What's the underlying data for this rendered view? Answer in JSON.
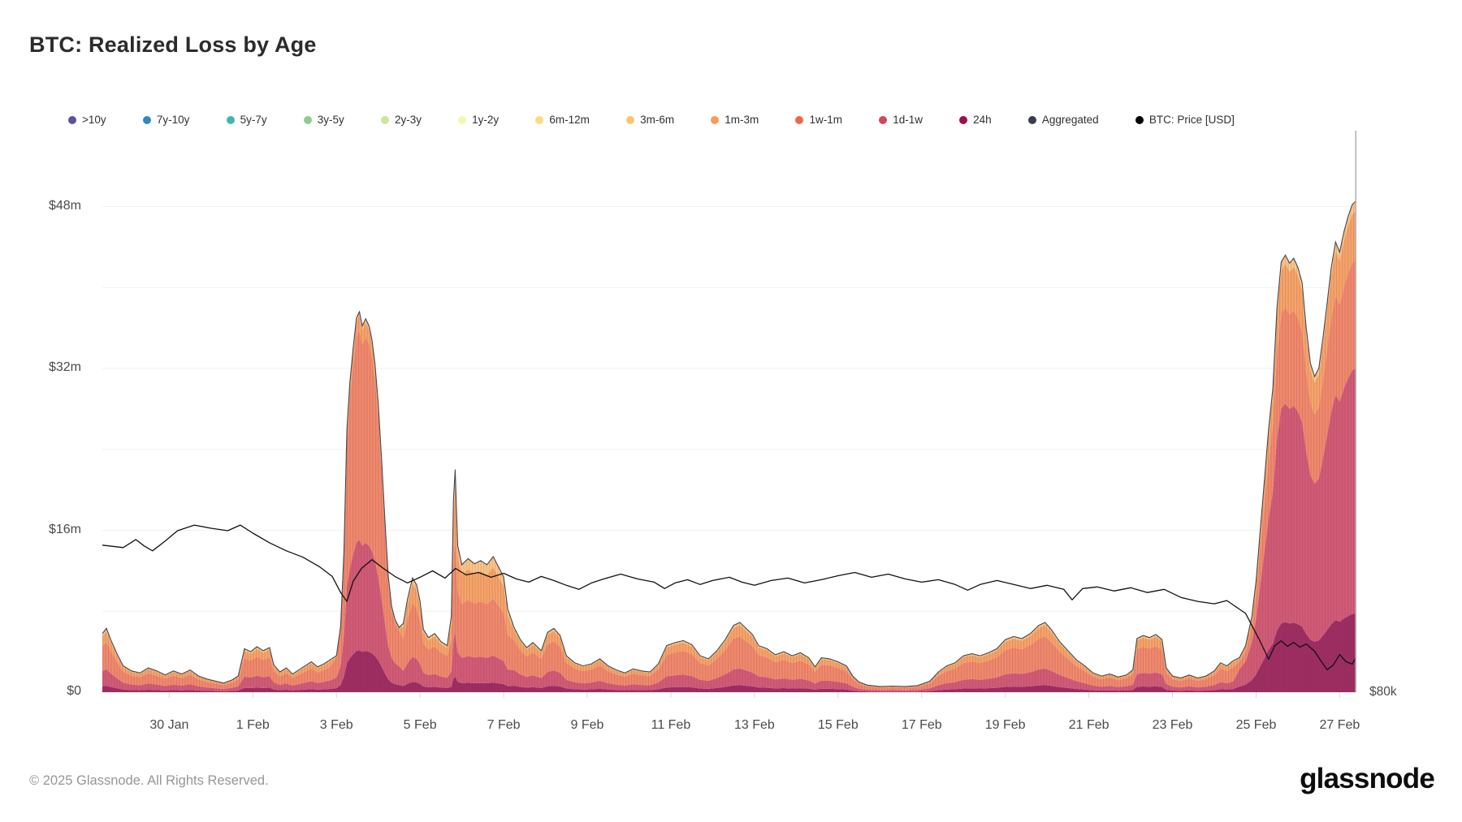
{
  "header": {
    "title": "BTC: Realized Loss by Age"
  },
  "footer": {
    "copyright": "© 2025 Glassnode. All Rights Reserved.",
    "brand": "glassnode"
  },
  "legend": {
    "items": [
      {
        "id": "gt10y",
        "label": ">10y",
        "color": "#5e4fa2"
      },
      {
        "id": "7y-10y",
        "label": "7y-10y",
        "color": "#3288bd"
      },
      {
        "id": "5y-7y",
        "label": "5y-7y",
        "color": "#45b5aa"
      },
      {
        "id": "3y-5y",
        "label": "3y-5y",
        "color": "#8ecb93"
      },
      {
        "id": "2y-3y",
        "label": "2y-3y",
        "color": "#cbe79a"
      },
      {
        "id": "1y-2y",
        "label": "1y-2y",
        "color": "#f3f9ad"
      },
      {
        "id": "6m-12m",
        "label": "6m-12m",
        "color": "#fcda7e"
      },
      {
        "id": "3m-6m",
        "label": "3m-6m",
        "color": "#fbc46d"
      },
      {
        "id": "1m-3m",
        "label": "1m-3m",
        "color": "#f89b57"
      },
      {
        "id": "1w-1m",
        "label": "1w-1m",
        "color": "#f06744"
      },
      {
        "id": "1d-1w",
        "label": "1d-1w",
        "color": "#d4465a"
      },
      {
        "id": "24h",
        "label": "24h",
        "color": "#9e0f4d"
      },
      {
        "id": "aggregated",
        "label": "Aggregated",
        "color": "#3a3d4d"
      },
      {
        "id": "btc-price",
        "label": "BTC: Price [USD]",
        "color": "#000000"
      }
    ]
  },
  "chart_data": {
    "type": "area",
    "title": "BTC: Realized Loss by Age",
    "unit": "USD millions realized loss per hour",
    "x_unit_days_span": 30,
    "x_origin_note": "d = fractional days, d=0 at left edge (~28 Jan), d=30 at right edge (~27 Feb)",
    "ylim": [
      0,
      55.5
    ],
    "y_grid_step": 8,
    "y_ticks": [
      {
        "v": 0,
        "label": "$0"
      },
      {
        "v": 16,
        "label": "$16m"
      },
      {
        "v": 32,
        "label": "$32m"
      },
      {
        "v": 48,
        "label": "$48m"
      }
    ],
    "x_ticks": [
      {
        "d": 1.6,
        "label": "30 Jan"
      },
      {
        "d": 3.6,
        "label": "1 Feb"
      },
      {
        "d": 5.6,
        "label": "3 Feb"
      },
      {
        "d": 7.6,
        "label": "5 Feb"
      },
      {
        "d": 9.6,
        "label": "7 Feb"
      },
      {
        "d": 11.6,
        "label": "9 Feb"
      },
      {
        "d": 13.6,
        "label": "11 Feb"
      },
      {
        "d": 15.6,
        "label": "13 Feb"
      },
      {
        "d": 17.6,
        "label": "15 Feb"
      },
      {
        "d": 19.6,
        "label": "17 Feb"
      },
      {
        "d": 21.6,
        "label": "19 Feb"
      },
      {
        "d": 23.6,
        "label": "21 Feb"
      },
      {
        "d": 25.6,
        "label": "23 Feb"
      },
      {
        "d": 27.6,
        "label": "25 Feb"
      },
      {
        "d": 29.6,
        "label": "27 Feb"
      }
    ],
    "layers": [
      {
        "id": "24h",
        "fill": "#9d2e63"
      },
      {
        "id": "1d-1w",
        "fill": "#d05c77"
      },
      {
        "id": "1w-1m",
        "fill": "#ef8a6d"
      },
      {
        "id": "1m-3m",
        "fill": "#f5a569"
      },
      {
        "id": "3m-6m+",
        "fill": "#f9c788"
      }
    ],
    "composition": [
      {
        "from": 0.0,
        "to": 5.5,
        "f": [
          0.1,
          0.26,
          0.42,
          0.17,
          0.05
        ]
      },
      {
        "from": 5.5,
        "to": 7.15,
        "f": [
          0.11,
          0.29,
          0.55,
          0.04,
          0.01
        ]
      },
      {
        "from": 7.15,
        "to": 8.3,
        "f": [
          0.09,
          0.22,
          0.47,
          0.17,
          0.05
        ]
      },
      {
        "from": 8.3,
        "to": 9.75,
        "f": [
          0.07,
          0.2,
          0.42,
          0.23,
          0.08
        ]
      },
      {
        "from": 9.75,
        "to": 27.1,
        "f": [
          0.1,
          0.24,
          0.46,
          0.16,
          0.04
        ]
      },
      {
        "from": 27.1,
        "to": 30.1,
        "f": [
          0.16,
          0.5,
          0.22,
          0.1,
          0.02
        ]
      }
    ],
    "total_loss_musd": [
      [
        0,
        5.8
      ],
      [
        0.1,
        6.3
      ],
      [
        0.2,
        5.2
      ],
      [
        0.35,
        3.8
      ],
      [
        0.5,
        2.6
      ],
      [
        0.7,
        2.1
      ],
      [
        0.9,
        1.9
      ],
      [
        1.1,
        2.4
      ],
      [
        1.3,
        2.1
      ],
      [
        1.5,
        1.7
      ],
      [
        1.7,
        2.1
      ],
      [
        1.9,
        1.8
      ],
      [
        2.1,
        2.2
      ],
      [
        2.3,
        1.6
      ],
      [
        2.5,
        1.3
      ],
      [
        2.7,
        1.1
      ],
      [
        2.9,
        0.9
      ],
      [
        3.1,
        1.2
      ],
      [
        3.25,
        1.6
      ],
      [
        3.4,
        4.3
      ],
      [
        3.55,
        4.0
      ],
      [
        3.7,
        4.5
      ],
      [
        3.85,
        4.1
      ],
      [
        4.0,
        4.4
      ],
      [
        4.1,
        2.7
      ],
      [
        4.25,
        2.0
      ],
      [
        4.4,
        2.4
      ],
      [
        4.55,
        1.8
      ],
      [
        4.7,
        2.2
      ],
      [
        4.85,
        2.6
      ],
      [
        5.0,
        3.0
      ],
      [
        5.15,
        2.5
      ],
      [
        5.3,
        2.8
      ],
      [
        5.45,
        3.2
      ],
      [
        5.6,
        3.6
      ],
      [
        5.7,
        6.5
      ],
      [
        5.78,
        14
      ],
      [
        5.85,
        26
      ],
      [
        5.92,
        30.5
      ],
      [
        6.0,
        34
      ],
      [
        6.08,
        37
      ],
      [
        6.15,
        37.6
      ],
      [
        6.22,
        36.2
      ],
      [
        6.3,
        36.9
      ],
      [
        6.38,
        36.2
      ],
      [
        6.45,
        34.8
      ],
      [
        6.52,
        32.5
      ],
      [
        6.6,
        28.5
      ],
      [
        6.68,
        23
      ],
      [
        6.76,
        17
      ],
      [
        6.84,
        11.5
      ],
      [
        6.92,
        8.5
      ],
      [
        7.0,
        7.2
      ],
      [
        7.1,
        6.4
      ],
      [
        7.2,
        6.8
      ],
      [
        7.3,
        9.2
      ],
      [
        7.42,
        11.3
      ],
      [
        7.52,
        10.6
      ],
      [
        7.6,
        9.0
      ],
      [
        7.68,
        6.2
      ],
      [
        7.8,
        5.4
      ],
      [
        7.95,
        5.8
      ],
      [
        8.1,
        5.0
      ],
      [
        8.25,
        4.6
      ],
      [
        8.35,
        7.5
      ],
      [
        8.4,
        19
      ],
      [
        8.44,
        22
      ],
      [
        8.5,
        14.5
      ],
      [
        8.6,
        12.6
      ],
      [
        8.75,
        13.2
      ],
      [
        8.9,
        12.7
      ],
      [
        9.05,
        13.0
      ],
      [
        9.2,
        12.6
      ],
      [
        9.35,
        13.4
      ],
      [
        9.5,
        12.2
      ],
      [
        9.6,
        11.4
      ],
      [
        9.7,
        8.2
      ],
      [
        9.85,
        6.4
      ],
      [
        10.0,
        5.2
      ],
      [
        10.15,
        4.4
      ],
      [
        10.3,
        4.9
      ],
      [
        10.5,
        4.1
      ],
      [
        10.65,
        5.9
      ],
      [
        10.8,
        6.3
      ],
      [
        10.95,
        5.6
      ],
      [
        11.1,
        3.6
      ],
      [
        11.3,
        2.9
      ],
      [
        11.5,
        2.6
      ],
      [
        11.7,
        2.8
      ],
      [
        11.9,
        3.3
      ],
      [
        12.1,
        2.6
      ],
      [
        12.3,
        2.2
      ],
      [
        12.5,
        1.9
      ],
      [
        12.7,
        2.3
      ],
      [
        12.9,
        2.1
      ],
      [
        13.1,
        2.0
      ],
      [
        13.3,
        2.8
      ],
      [
        13.5,
        4.6
      ],
      [
        13.7,
        4.9
      ],
      [
        13.9,
        5.1
      ],
      [
        14.1,
        4.7
      ],
      [
        14.3,
        3.6
      ],
      [
        14.5,
        3.3
      ],
      [
        14.7,
        4.1
      ],
      [
        14.9,
        5.2
      ],
      [
        15.1,
        6.6
      ],
      [
        15.25,
        6.9
      ],
      [
        15.4,
        6.3
      ],
      [
        15.55,
        5.7
      ],
      [
        15.7,
        4.6
      ],
      [
        15.9,
        4.3
      ],
      [
        16.1,
        3.7
      ],
      [
        16.3,
        4.0
      ],
      [
        16.5,
        3.6
      ],
      [
        16.7,
        3.9
      ],
      [
        16.9,
        3.4
      ],
      [
        17.05,
        2.5
      ],
      [
        17.2,
        3.4
      ],
      [
        17.4,
        3.3
      ],
      [
        17.6,
        3.0
      ],
      [
        17.8,
        2.6
      ],
      [
        17.95,
        1.6
      ],
      [
        18.1,
        1.0
      ],
      [
        18.3,
        0.7
      ],
      [
        18.6,
        0.55
      ],
      [
        18.9,
        0.6
      ],
      [
        19.2,
        0.55
      ],
      [
        19.5,
        0.65
      ],
      [
        19.8,
        1.1
      ],
      [
        20.0,
        2.0
      ],
      [
        20.2,
        2.6
      ],
      [
        20.4,
        2.9
      ],
      [
        20.6,
        3.6
      ],
      [
        20.8,
        3.8
      ],
      [
        21.0,
        3.6
      ],
      [
        21.2,
        3.9
      ],
      [
        21.4,
        4.3
      ],
      [
        21.6,
        5.2
      ],
      [
        21.8,
        5.5
      ],
      [
        22.0,
        5.3
      ],
      [
        22.2,
        5.8
      ],
      [
        22.4,
        6.6
      ],
      [
        22.55,
        6.9
      ],
      [
        22.7,
        6.2
      ],
      [
        22.9,
        5.0
      ],
      [
        23.1,
        4.1
      ],
      [
        23.3,
        3.2
      ],
      [
        23.5,
        2.6
      ],
      [
        23.7,
        1.9
      ],
      [
        23.9,
        1.6
      ],
      [
        24.1,
        1.8
      ],
      [
        24.3,
        1.5
      ],
      [
        24.5,
        1.7
      ],
      [
        24.65,
        2.2
      ],
      [
        24.75,
        5.3
      ],
      [
        24.9,
        5.6
      ],
      [
        25.05,
        5.4
      ],
      [
        25.2,
        5.7
      ],
      [
        25.35,
        5.2
      ],
      [
        25.45,
        2.4
      ],
      [
        25.6,
        1.6
      ],
      [
        25.8,
        1.4
      ],
      [
        26.0,
        1.7
      ],
      [
        26.2,
        1.4
      ],
      [
        26.4,
        1.6
      ],
      [
        26.6,
        2.1
      ],
      [
        26.75,
        2.9
      ],
      [
        26.9,
        2.6
      ],
      [
        27.05,
        3.1
      ],
      [
        27.2,
        3.4
      ],
      [
        27.35,
        4.6
      ],
      [
        27.5,
        7.5
      ],
      [
        27.6,
        11
      ],
      [
        27.7,
        16
      ],
      [
        27.8,
        21
      ],
      [
        27.9,
        26
      ],
      [
        28.0,
        30
      ],
      [
        28.1,
        38
      ],
      [
        28.2,
        42.5
      ],
      [
        28.3,
        43.2
      ],
      [
        28.4,
        42.4
      ],
      [
        28.5,
        42.9
      ],
      [
        28.6,
        42.0
      ],
      [
        28.7,
        40.5
      ],
      [
        28.8,
        36
      ],
      [
        28.9,
        32.5
      ],
      [
        29.0,
        31.2
      ],
      [
        29.1,
        32
      ],
      [
        29.2,
        35
      ],
      [
        29.3,
        38.5
      ],
      [
        29.4,
        42
      ],
      [
        29.5,
        44.5
      ],
      [
        29.6,
        43.5
      ],
      [
        29.7,
        45.5
      ],
      [
        29.8,
        47
      ],
      [
        29.9,
        48.2
      ],
      [
        30.0,
        48.6
      ]
    ],
    "price_axis": {
      "tick_label": "$80k",
      "ylim_kusd": [
        80,
        149.9
      ]
    },
    "price_kusd": [
      [
        0,
        98.3
      ],
      [
        0.5,
        98.0
      ],
      [
        0.8,
        99.0
      ],
      [
        1.0,
        98.2
      ],
      [
        1.2,
        97.6
      ],
      [
        1.5,
        98.8
      ],
      [
        1.8,
        100.1
      ],
      [
        2.2,
        100.8
      ],
      [
        2.6,
        100.4
      ],
      [
        3.0,
        100.1
      ],
      [
        3.3,
        100.8
      ],
      [
        3.6,
        99.8
      ],
      [
        4.0,
        98.6
      ],
      [
        4.4,
        97.6
      ],
      [
        4.8,
        96.8
      ],
      [
        5.2,
        95.6
      ],
      [
        5.5,
        94.4
      ],
      [
        5.7,
        92.4
      ],
      [
        5.85,
        91.3
      ],
      [
        6.0,
        93.8
      ],
      [
        6.2,
        95.4
      ],
      [
        6.45,
        96.5
      ],
      [
        6.7,
        95.5
      ],
      [
        7.0,
        94.4
      ],
      [
        7.3,
        93.6
      ],
      [
        7.6,
        94.3
      ],
      [
        7.9,
        95.1
      ],
      [
        8.2,
        94.2
      ],
      [
        8.45,
        95.4
      ],
      [
        8.7,
        94.6
      ],
      [
        9.0,
        94.9
      ],
      [
        9.3,
        94.3
      ],
      [
        9.6,
        94.8
      ],
      [
        9.9,
        94.1
      ],
      [
        10.2,
        93.7
      ],
      [
        10.5,
        94.4
      ],
      [
        10.8,
        93.9
      ],
      [
        11.1,
        93.3
      ],
      [
        11.4,
        92.8
      ],
      [
        11.7,
        93.6
      ],
      [
        12.0,
        94.1
      ],
      [
        12.4,
        94.7
      ],
      [
        12.8,
        94.1
      ],
      [
        13.2,
        93.7
      ],
      [
        13.45,
        92.9
      ],
      [
        13.7,
        93.6
      ],
      [
        14.0,
        94.0
      ],
      [
        14.3,
        93.4
      ],
      [
        14.6,
        93.9
      ],
      [
        15.0,
        94.3
      ],
      [
        15.3,
        93.7
      ],
      [
        15.6,
        93.3
      ],
      [
        16.0,
        93.9
      ],
      [
        16.4,
        94.2
      ],
      [
        16.8,
        93.6
      ],
      [
        17.2,
        94.0
      ],
      [
        17.6,
        94.5
      ],
      [
        18.0,
        94.9
      ],
      [
        18.4,
        94.3
      ],
      [
        18.8,
        94.7
      ],
      [
        19.2,
        94.1
      ],
      [
        19.6,
        93.7
      ],
      [
        20.0,
        94.0
      ],
      [
        20.4,
        93.4
      ],
      [
        20.7,
        92.7
      ],
      [
        21.0,
        93.4
      ],
      [
        21.4,
        93.9
      ],
      [
        21.8,
        93.4
      ],
      [
        22.2,
        92.9
      ],
      [
        22.6,
        93.3
      ],
      [
        23.0,
        92.8
      ],
      [
        23.2,
        91.5
      ],
      [
        23.45,
        92.9
      ],
      [
        23.8,
        93.1
      ],
      [
        24.2,
        92.6
      ],
      [
        24.6,
        93.0
      ],
      [
        25.0,
        92.4
      ],
      [
        25.4,
        92.8
      ],
      [
        25.8,
        91.8
      ],
      [
        26.2,
        91.3
      ],
      [
        26.6,
        91.0
      ],
      [
        26.9,
        91.4
      ],
      [
        27.1,
        90.7
      ],
      [
        27.35,
        89.8
      ],
      [
        27.5,
        88.3
      ],
      [
        27.7,
        86.3
      ],
      [
        27.9,
        84.1
      ],
      [
        28.05,
        85.8
      ],
      [
        28.2,
        86.4
      ],
      [
        28.35,
        85.7
      ],
      [
        28.5,
        86.2
      ],
      [
        28.65,
        85.6
      ],
      [
        28.8,
        86.0
      ],
      [
        29.0,
        85.1
      ],
      [
        29.15,
        83.9
      ],
      [
        29.3,
        82.8
      ],
      [
        29.45,
        83.4
      ],
      [
        29.6,
        84.7
      ],
      [
        29.75,
        83.8
      ],
      [
        29.9,
        83.5
      ],
      [
        30.0,
        84.4
      ]
    ],
    "style": {
      "grid_color": "#f1f1f1",
      "baseline_color": "#e3e3e3",
      "outline_color": "#45454f",
      "price_color": "#111111",
      "right_border_color": "#b3b3b3",
      "stripe_color": "rgba(128,24,56,0.16)"
    }
  }
}
